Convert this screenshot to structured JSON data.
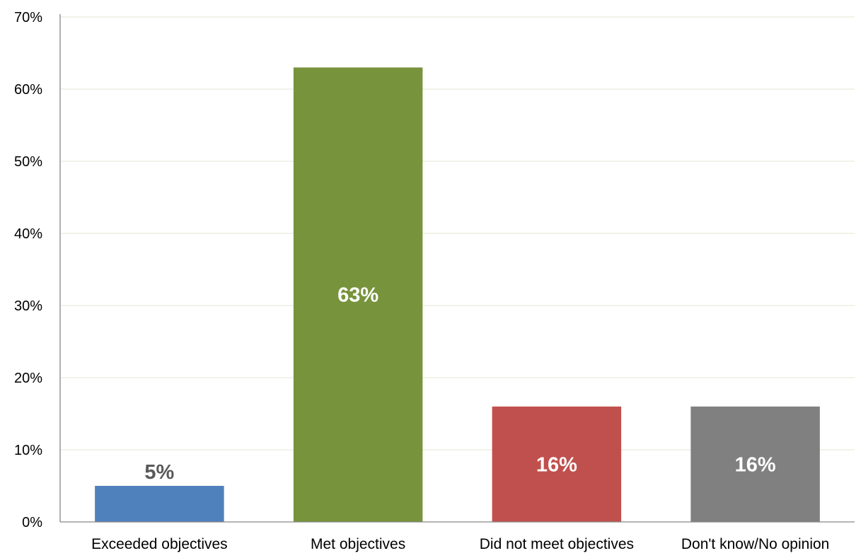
{
  "chart_data": {
    "type": "bar",
    "title": "",
    "xlabel": "",
    "ylabel": "",
    "categories": [
      "Exceeded objectives",
      "Met objectives",
      "Did not meet objectives",
      "Don't know/No opinion"
    ],
    "values": [
      5,
      63,
      16,
      16
    ],
    "data_labels": [
      "5%",
      "63%",
      "16%",
      "16%"
    ],
    "colors": [
      "#4f81bd",
      "#77933c",
      "#c0504d",
      "#808080"
    ],
    "label_colors": [
      "#595959",
      "#ffffff",
      "#ffffff",
      "#ffffff"
    ],
    "ylim": [
      0,
      70
    ],
    "yticks": [
      0,
      10,
      20,
      30,
      40,
      50,
      60,
      70
    ],
    "ytick_labels": [
      "0%",
      "10%",
      "20%",
      "30%",
      "40%",
      "50%",
      "60%",
      "70%"
    ],
    "grid": true,
    "grid_color": "#eeeee2",
    "legend": "none"
  }
}
